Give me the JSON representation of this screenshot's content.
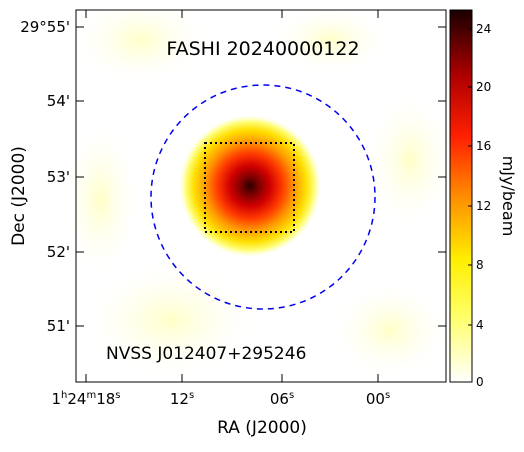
{
  "image": {
    "title": "FASHI 20240000122",
    "source_label": "NVSS J012407+295246",
    "x_axis": {
      "label": "RA (J2000)",
      "ticks": [
        {
          "main": "1",
          "sup1": "h",
          "main2": "24",
          "sup2": "m",
          "main3": "18",
          "sup3": "s"
        },
        {
          "main": "12",
          "sup1": "s"
        },
        {
          "main": "06",
          "sup1": "s"
        },
        {
          "main": "00",
          "sup1": "s"
        }
      ]
    },
    "y_axis": {
      "label": "Dec (J2000)",
      "ticks": [
        "29°55'",
        "54'",
        "53'",
        "52'",
        "51'"
      ]
    },
    "colorbar": {
      "label": "mJy/beam",
      "ticks": [
        "0",
        "4",
        "8",
        "12",
        "16",
        "20",
        "24"
      ],
      "range": [
        0,
        25
      ]
    },
    "colors": {
      "circle": "#0000ee",
      "box": "#000000",
      "peak": "#2a0000"
    }
  }
}
